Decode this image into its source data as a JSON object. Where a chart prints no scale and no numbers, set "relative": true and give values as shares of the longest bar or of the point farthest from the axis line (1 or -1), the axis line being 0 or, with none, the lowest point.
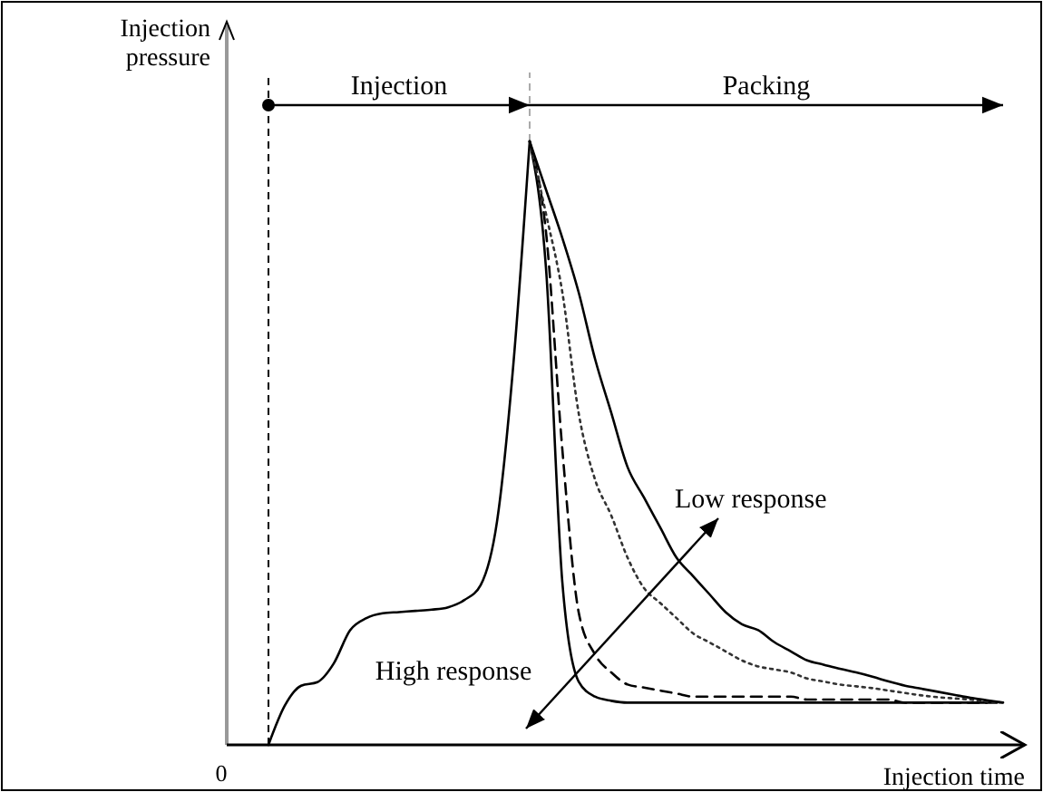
{
  "chart_data": {
    "type": "line",
    "relative": true,
    "xlabel": "Injection time",
    "ylabel": "Injection pressure",
    "categories": [
      null,
      null,
      null,
      null,
      null,
      null,
      null,
      null,
      null,
      null,
      null,
      null,
      null,
      null,
      null,
      null,
      null,
      null,
      null,
      null,
      null,
      null,
      null,
      null,
      null,
      null,
      null,
      null,
      null,
      null,
      null,
      null,
      null,
      null,
      null,
      null,
      null,
      null,
      null,
      null,
      null,
      null,
      null,
      null,
      null,
      null
    ],
    "series": [
      {
        "color": "#000000",
        "line_style": "solid",
        "values": [
          0,
          0.065,
          0.098,
          0.104,
          0.135,
          0.19,
          0.21,
          0.218,
          0.22,
          0.222,
          0.224,
          0.228,
          0.24,
          0.265,
          0.37,
          0.63,
          1,
          null,
          null,
          null,
          null,
          null,
          null,
          null,
          null,
          null,
          null,
          null,
          null,
          null,
          null,
          null,
          null,
          null,
          null,
          null,
          null,
          null,
          null,
          null,
          null,
          null,
          null,
          null,
          null,
          null
        ]
      },
      {
        "color": "#000000",
        "line_style": "solid",
        "values": [
          null,
          null,
          null,
          null,
          null,
          null,
          null,
          null,
          null,
          null,
          null,
          null,
          null,
          null,
          null,
          null,
          1,
          0.79,
          0.27,
          0.105,
          0.08,
          0.073,
          0.07,
          0.07,
          0.07,
          0.07,
          0.07,
          0.07,
          0.07,
          0.07,
          0.07,
          0.07,
          0.07,
          0.07,
          0.07,
          0.07,
          0.07,
          0.07,
          0.07,
          0.07,
          0.07,
          0.07,
          0.07,
          0.07,
          0.07,
          null
        ]
      },
      {
        "color": "#000000",
        "line_style": "dashed",
        "values": [
          null,
          null,
          null,
          null,
          null,
          null,
          null,
          null,
          null,
          null,
          null,
          null,
          null,
          null,
          null,
          null,
          1,
          0.85,
          0.49,
          0.22,
          0.15,
          0.12,
          0.1,
          0.095,
          0.09,
          0.085,
          0.08,
          0.08,
          0.08,
          0.08,
          0.08,
          0.08,
          0.08,
          0.075,
          0.075,
          0.075,
          0.075,
          0.075,
          0.075,
          0.07,
          0.07,
          0.07,
          0.07,
          0.07,
          0.07,
          0.07
        ]
      },
      {
        "color": "#333333",
        "line_style": "dotted",
        "values": [
          null,
          null,
          null,
          null,
          null,
          null,
          null,
          null,
          null,
          null,
          null,
          null,
          null,
          null,
          null,
          null,
          1,
          0.88,
          0.75,
          0.55,
          0.44,
          0.38,
          0.31,
          0.26,
          0.235,
          0.21,
          0.185,
          0.17,
          0.155,
          0.14,
          0.13,
          0.125,
          0.12,
          0.11,
          0.105,
          0.1,
          0.097,
          0.094,
          0.09,
          0.086,
          0.082,
          0.079,
          0.077,
          0.075,
          0.072,
          0.07
        ]
      },
      {
        "color": "#000000",
        "line_style": "solid",
        "values": [
          null,
          null,
          null,
          null,
          null,
          null,
          null,
          null,
          null,
          null,
          null,
          null,
          null,
          null,
          null,
          null,
          1,
          0.92,
          0.84,
          0.75,
          0.64,
          0.55,
          0.46,
          0.41,
          0.36,
          0.31,
          0.28,
          0.25,
          0.22,
          0.2,
          0.19,
          0.17,
          0.155,
          0.14,
          0.133,
          0.126,
          0.12,
          0.113,
          0.105,
          0.098,
          0.093,
          0.088,
          0.083,
          0.078,
          0.074,
          0.07
        ]
      }
    ],
    "annotations": [
      "Injection",
      "Packing",
      "0",
      "High response",
      "Low response"
    ]
  }
}
